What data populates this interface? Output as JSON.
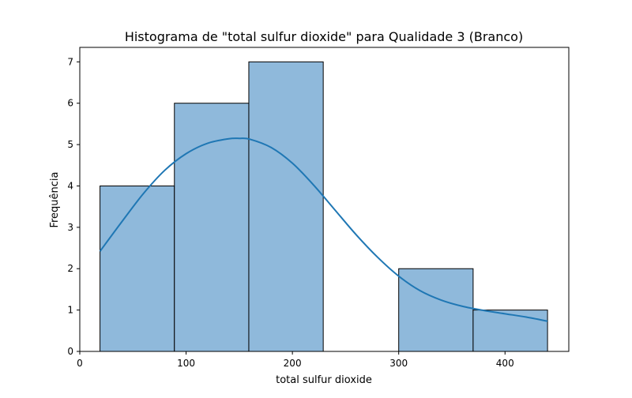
{
  "chart_data": {
    "type": "bar",
    "subtype": "histogram",
    "title": "Histograma de \"total sulfur dioxide\" para Qualidade 3 (Branco)",
    "xlabel": "total sulfur dioxide",
    "ylabel": "Frequência",
    "xlim": [
      0,
      460
    ],
    "ylim": [
      0,
      7.35
    ],
    "x_ticks": [
      0,
      100,
      200,
      300,
      400
    ],
    "y_ticks": [
      0,
      1,
      2,
      3,
      4,
      5,
      6,
      7
    ],
    "bins": [
      {
        "start": 19,
        "end": 89,
        "count": 4
      },
      {
        "start": 89,
        "end": 159,
        "count": 6
      },
      {
        "start": 159,
        "end": 229,
        "count": 7
      },
      {
        "start": 229,
        "end": 300,
        "count": 0
      },
      {
        "start": 300,
        "end": 370,
        "count": 2
      },
      {
        "start": 370,
        "end": 440,
        "count": 1
      }
    ],
    "kde": {
      "x": [
        19,
        40,
        60,
        80,
        100,
        120,
        140,
        150,
        160,
        180,
        200,
        220,
        240,
        260,
        280,
        300,
        320,
        340,
        360,
        380,
        400,
        420,
        440
      ],
      "y": [
        2.42,
        3.15,
        3.82,
        4.38,
        4.78,
        5.03,
        5.14,
        5.15,
        5.13,
        4.93,
        4.55,
        4.02,
        3.42,
        2.82,
        2.28,
        1.82,
        1.47,
        1.24,
        1.09,
        0.99,
        0.91,
        0.83,
        0.73
      ]
    },
    "colors": {
      "bar_fill": "#8fb9db",
      "bar_edge": "#000000",
      "kde_line": "#1f77b4"
    },
    "grid": false,
    "legend": "none"
  }
}
